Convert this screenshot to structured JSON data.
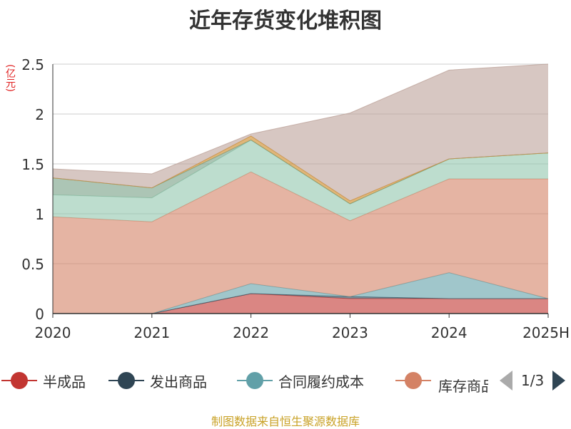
{
  "chart_data": {
    "type": "area",
    "stacked": true,
    "title": "近年存货变化堆积图",
    "unit_label": "(亿元)",
    "categories": [
      "2020",
      "2021",
      "2022",
      "2023",
      "2024",
      "2025H"
    ],
    "ylim": [
      0,
      2.5
    ],
    "yticks": [
      "0",
      "0.5",
      "1",
      "1.5",
      "2",
      "2.5"
    ],
    "grid": true,
    "legend_position": "bottom",
    "series": [
      {
        "name": "半成品",
        "color": "#c23531",
        "values": [
          0,
          0,
          0.2,
          0.15,
          0.15,
          0.15
        ]
      },
      {
        "name": "发出商品",
        "color": "#2f4554",
        "values": [
          0,
          0,
          0,
          0.02,
          0,
          0
        ]
      },
      {
        "name": "合同履约成本",
        "color": "#61a0a8",
        "values": [
          0,
          0,
          0.1,
          0,
          0.26,
          0
        ]
      },
      {
        "name": "库存商品",
        "color": "#d48265",
        "values": [
          0.97,
          0.92,
          1.12,
          0.76,
          0.94,
          1.2
        ]
      },
      {
        "name": "",
        "color": "#91c7ae",
        "values": [
          0.22,
          0.24,
          0.32,
          0.17,
          0.2,
          0.26
        ]
      },
      {
        "name": "",
        "color": "#749f83",
        "values": [
          0.17,
          0.1,
          0,
          0,
          0,
          0
        ]
      },
      {
        "name": "",
        "color": "#ca8622",
        "values": [
          0,
          0,
          0.04,
          0.03,
          0,
          0
        ]
      },
      {
        "name": "",
        "color": "#bda29a",
        "values": [
          0.09,
          0.14,
          0.02,
          0.88,
          0.89,
          0.89
        ]
      }
    ]
  },
  "legend": {
    "items": [
      "半成品",
      "发出商品",
      "合同履约成本",
      "库存商品"
    ],
    "page_text": "1/3"
  },
  "source": "制图数据来自恒生聚源数据库"
}
